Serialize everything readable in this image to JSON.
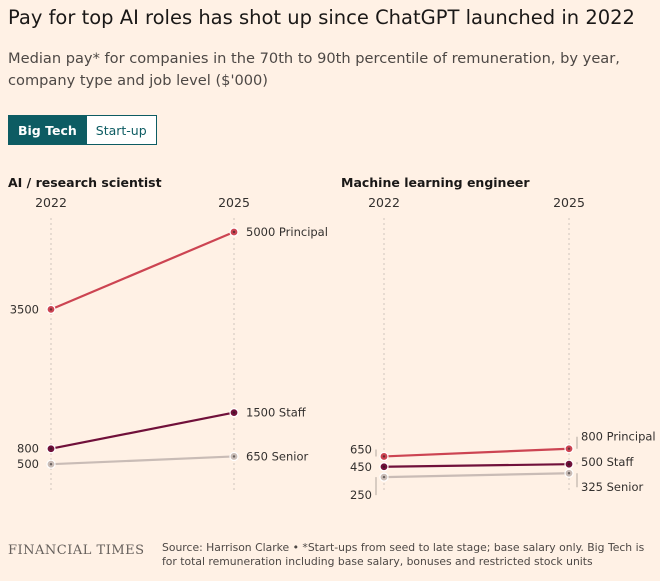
{
  "header": {
    "title": "Pay for top AI roles has shot up since ChatGPT launched in 2022",
    "subtitle": "Median pay* for companies in the 70th to 90th percentile of remuneration, by year, company type and job level ($'000)"
  },
  "toggle": {
    "options": [
      "Big Tech",
      "Start-up"
    ],
    "selected": "Big Tech"
  },
  "colors": {
    "background": "#fff1e5",
    "principal": "#cc4452",
    "staff": "#70103a",
    "senior": "#c9bcb6",
    "accent": "#0d5c63"
  },
  "chart_data": [
    {
      "type": "line",
      "title": "AI / research scientist",
      "x": [
        "2022",
        "2025"
      ],
      "series": [
        {
          "name": "Principal",
          "values": [
            3500,
            5000
          ],
          "color": "#cc4452"
        },
        {
          "name": "Staff",
          "values": [
            800,
            1500
          ],
          "color": "#70103a"
        },
        {
          "name": "Senior",
          "values": [
            500,
            650
          ],
          "color": "#c9bcb6"
        }
      ],
      "start_labels": [
        "3500",
        "800",
        "500"
      ],
      "end_labels": [
        "5000 Principal",
        "1500 Staff",
        "650 Senior"
      ],
      "ylim": [
        0,
        5300
      ]
    },
    {
      "type": "line",
      "title": "Machine learning engineer",
      "x": [
        "2022",
        "2025"
      ],
      "series": [
        {
          "name": "Principal",
          "values": [
            650,
            800
          ],
          "color": "#cc4452"
        },
        {
          "name": "Staff",
          "values": [
            450,
            500
          ],
          "color": "#70103a"
        },
        {
          "name": "Senior",
          "values": [
            250,
            325
          ],
          "color": "#c9bcb6"
        }
      ],
      "start_labels": [
        "650",
        "450",
        "250"
      ],
      "end_labels": [
        "800 Principal",
        "500 Staff",
        "325 Senior"
      ],
      "ylim": [
        0,
        5300
      ]
    }
  ],
  "footer": {
    "logo": "FINANCIAL TIMES",
    "note": "Source: Harrison Clarke • *Start-ups from seed to late stage; base salary only. Big Tech is for total remuneration including base salary, bonuses and restricted stock units"
  }
}
